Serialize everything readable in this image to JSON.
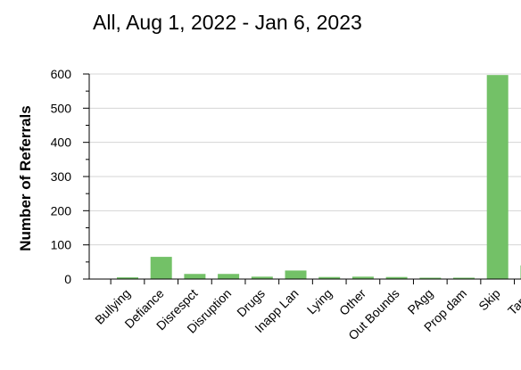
{
  "chart_data": {
    "type": "bar",
    "title": "All, Aug 1, 2022 - Jan 6, 2023",
    "xlabel": "",
    "ylabel": "Number of Referrals",
    "ylim": [
      0,
      600
    ],
    "yticks": [
      0,
      100,
      200,
      300,
      400,
      500,
      600
    ],
    "grid": true,
    "bar_color": "#73c167",
    "categories": [
      "Bullying",
      "Defiance",
      "Disrespct",
      "Disruption",
      "Drugs",
      "Inapp Lan",
      "Lying",
      "Other",
      "Out Bounds",
      "PAgg",
      "Prop dam",
      "Skip",
      "Tardy"
    ],
    "values": [
      5,
      65,
      15,
      15,
      7,
      25,
      6,
      7,
      6,
      4,
      4,
      597,
      40
    ]
  }
}
